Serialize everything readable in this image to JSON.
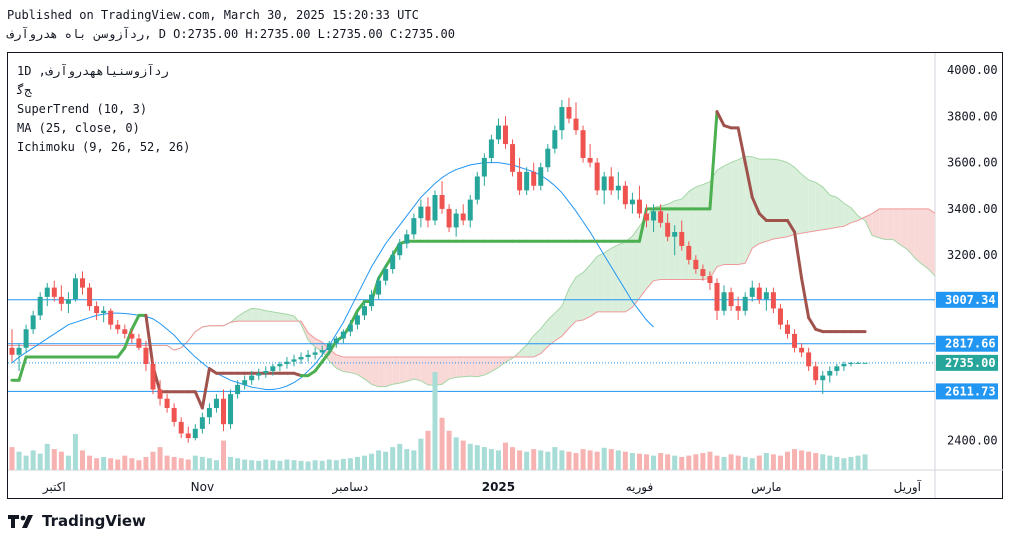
{
  "header": {
    "published": "Published on TradingView.com, March 30, 2025 15:20:33 UTC",
    "symbol_title": "ردآزوسن باه هدروآرف",
    "ohlc": ", D O:2735.00 H:2735.00 L:2735.00 C:2735.00"
  },
  "legend": {
    "symbol_line": "1D ,ردآزوسنیاههدروآرف",
    "symbol_sub": "ﺞﮔ",
    "indicators": [
      "SuperTrend (10, 3)",
      "MA (25, close, 0)",
      "Ichimoku (9, 26, 52, 26)"
    ]
  },
  "brand": {
    "name": "TradingView"
  },
  "colors": {
    "up": "#26a69a",
    "down": "#ef5350",
    "supertrend_up": "#4caf50",
    "supertrend_down": "#a0524c",
    "ma": "#2196f3",
    "cloud_bull": "#d9efdb",
    "cloud_bear": "#f9d9d7",
    "hline": "#2196f3",
    "label_blue": "#2196f3",
    "label_green": "#26a69a"
  },
  "chart_data": {
    "type": "candlestick",
    "y_axis": {
      "ylim": [
        2290,
        4060
      ],
      "ticks": [
        2400,
        3200,
        3400,
        3600,
        3800,
        4000
      ],
      "tick_labels": [
        "2400.00",
        "3200.00",
        "3400.00",
        "3600.00",
        "3800.00",
        "4000.00"
      ]
    },
    "x_axis": {
      "tick_labels": [
        {
          "label": "اکتبر",
          "idx": 6
        },
        {
          "label": "Nov",
          "idx": 27
        },
        {
          "label": "دسامبر",
          "idx": 48
        },
        {
          "label": "2025",
          "idx": 69
        },
        {
          "label": "فوریه",
          "idx": 89
        },
        {
          "label": "مارس",
          "idx": 107
        },
        {
          "label": "آوریل",
          "idx": 127
        }
      ]
    },
    "horizontal_lines": [
      {
        "value": 3007.34,
        "label": "3007.34",
        "style": "solid",
        "label_color": "#2196f3"
      },
      {
        "value": 2817.66,
        "label": "2817.66",
        "style": "solid",
        "label_color": "#2196f3"
      },
      {
        "value": 2735.0,
        "label": "2735.00",
        "style": "dotted",
        "label_color": "#26a69a"
      },
      {
        "value": 2611.73,
        "label": "2611.73",
        "style": "solid",
        "label_color": "#2196f3"
      }
    ],
    "candles": [
      [
        2800,
        2880,
        2740,
        2770
      ],
      [
        2770,
        2820,
        2700,
        2800
      ],
      [
        2800,
        2900,
        2780,
        2880
      ],
      [
        2880,
        2960,
        2860,
        2940
      ],
      [
        2940,
        3040,
        2920,
        3020
      ],
      [
        3020,
        3080,
        2980,
        3060
      ],
      [
        3060,
        3090,
        3000,
        3020
      ],
      [
        3020,
        3070,
        2960,
        2990
      ],
      [
        2990,
        3040,
        2950,
        3010
      ],
      [
        3010,
        3120,
        3000,
        3100
      ],
      [
        3100,
        3130,
        3030,
        3060
      ],
      [
        3060,
        3080,
        2960,
        2980
      ],
      [
        2980,
        3000,
        2920,
        2950
      ],
      [
        2950,
        2980,
        2910,
        2960
      ],
      [
        2960,
        2970,
        2880,
        2900
      ],
      [
        2900,
        2920,
        2860,
        2880
      ],
      [
        2880,
        2900,
        2840,
        2860
      ],
      [
        2860,
        2880,
        2820,
        2840
      ],
      [
        2840,
        2860,
        2790,
        2800
      ],
      [
        2800,
        2830,
        2700,
        2730
      ],
      [
        2730,
        2750,
        2600,
        2620
      ],
      [
        2620,
        2660,
        2550,
        2580
      ],
      [
        2580,
        2600,
        2520,
        2540
      ],
      [
        2540,
        2560,
        2460,
        2480
      ],
      [
        2480,
        2500,
        2410,
        2430
      ],
      [
        2430,
        2460,
        2390,
        2410
      ],
      [
        2410,
        2470,
        2400,
        2450
      ],
      [
        2450,
        2520,
        2430,
        2500
      ],
      [
        2500,
        2560,
        2470,
        2540
      ],
      [
        2540,
        2600,
        2520,
        2580
      ],
      [
        2580,
        2620,
        2440,
        2470
      ],
      [
        2470,
        2620,
        2450,
        2600
      ],
      [
        2600,
        2660,
        2580,
        2640
      ],
      [
        2640,
        2680,
        2620,
        2660
      ],
      [
        2660,
        2700,
        2640,
        2680
      ],
      [
        2680,
        2710,
        2660,
        2690
      ],
      [
        2690,
        2720,
        2670,
        2700
      ],
      [
        2700,
        2730,
        2680,
        2720
      ],
      [
        2720,
        2740,
        2700,
        2730
      ],
      [
        2730,
        2760,
        2710,
        2740
      ],
      [
        2740,
        2770,
        2720,
        2750
      ],
      [
        2750,
        2780,
        2730,
        2760
      ],
      [
        2760,
        2790,
        2740,
        2770
      ],
      [
        2770,
        2800,
        2750,
        2780
      ],
      [
        2780,
        2810,
        2760,
        2790
      ],
      [
        2790,
        2830,
        2770,
        2820
      ],
      [
        2820,
        2850,
        2800,
        2840
      ],
      [
        2840,
        2880,
        2820,
        2870
      ],
      [
        2870,
        2920,
        2850,
        2900
      ],
      [
        2900,
        2950,
        2880,
        2940
      ],
      [
        2940,
        3000,
        2920,
        2980
      ],
      [
        2980,
        3050,
        2960,
        3030
      ],
      [
        3030,
        3110,
        3010,
        3090
      ],
      [
        3090,
        3160,
        3070,
        3140
      ],
      [
        3140,
        3220,
        3120,
        3200
      ],
      [
        3200,
        3270,
        3180,
        3250
      ],
      [
        3250,
        3310,
        3230,
        3290
      ],
      [
        3290,
        3380,
        3270,
        3360
      ],
      [
        3360,
        3440,
        3320,
        3410
      ],
      [
        3410,
        3450,
        3320,
        3350
      ],
      [
        3350,
        3480,
        3330,
        3460
      ],
      [
        3460,
        3520,
        3380,
        3400
      ],
      [
        3400,
        3420,
        3300,
        3320
      ],
      [
        3320,
        3400,
        3280,
        3380
      ],
      [
        3380,
        3420,
        3330,
        3350
      ],
      [
        3350,
        3460,
        3320,
        3440
      ],
      [
        3440,
        3560,
        3420,
        3540
      ],
      [
        3540,
        3640,
        3500,
        3620
      ],
      [
        3620,
        3720,
        3600,
        3700
      ],
      [
        3700,
        3790,
        3680,
        3760
      ],
      [
        3760,
        3800,
        3660,
        3680
      ],
      [
        3680,
        3700,
        3540,
        3560
      ],
      [
        3560,
        3620,
        3460,
        3480
      ],
      [
        3480,
        3580,
        3460,
        3560
      ],
      [
        3560,
        3600,
        3480,
        3500
      ],
      [
        3500,
        3600,
        3480,
        3580
      ],
      [
        3580,
        3680,
        3560,
        3660
      ],
      [
        3660,
        3760,
        3640,
        3740
      ],
      [
        3740,
        3870,
        3700,
        3840
      ],
      [
        3840,
        3880,
        3770,
        3790
      ],
      [
        3790,
        3860,
        3720,
        3740
      ],
      [
        3740,
        3760,
        3600,
        3620
      ],
      [
        3620,
        3680,
        3580,
        3600
      ],
      [
        3600,
        3620,
        3460,
        3480
      ],
      [
        3480,
        3560,
        3420,
        3540
      ],
      [
        3540,
        3580,
        3460,
        3480
      ],
      [
        3480,
        3560,
        3440,
        3500
      ],
      [
        3500,
        3520,
        3400,
        3420
      ],
      [
        3420,
        3470,
        3380,
        3440
      ],
      [
        3440,
        3500,
        3360,
        3380
      ],
      [
        3380,
        3420,
        3320,
        3350
      ],
      [
        3350,
        3420,
        3300,
        3390
      ],
      [
        3390,
        3420,
        3320,
        3340
      ],
      [
        3340,
        3380,
        3260,
        3280
      ],
      [
        3280,
        3330,
        3200,
        3300
      ],
      [
        3300,
        3350,
        3220,
        3240
      ],
      [
        3240,
        3260,
        3160,
        3180
      ],
      [
        3180,
        3200,
        3120,
        3140
      ],
      [
        3140,
        3160,
        3090,
        3110
      ],
      [
        3110,
        3130,
        3050,
        3080
      ],
      [
        3080,
        3100,
        2920,
        2960
      ],
      [
        2960,
        3070,
        2940,
        3040
      ],
      [
        3040,
        3060,
        2960,
        2980
      ],
      [
        2980,
        3020,
        2920,
        2960
      ],
      [
        2960,
        3040,
        2940,
        3020
      ],
      [
        3020,
        3090,
        3000,
        3060
      ],
      [
        3060,
        3080,
        2990,
        3010
      ],
      [
        3010,
        3060,
        2960,
        3040
      ],
      [
        3040,
        3060,
        2950,
        2970
      ],
      [
        2970,
        2990,
        2880,
        2900
      ],
      [
        2900,
        2920,
        2840,
        2860
      ],
      [
        2860,
        2880,
        2780,
        2800
      ],
      [
        2800,
        2820,
        2760,
        2780
      ],
      [
        2780,
        2800,
        2700,
        2720
      ],
      [
        2720,
        2740,
        2640,
        2660
      ],
      [
        2660,
        2700,
        2600,
        2680
      ],
      [
        2680,
        2720,
        2650,
        2700
      ],
      [
        2700,
        2730,
        2680,
        2720
      ],
      [
        2720,
        2740,
        2700,
        2730
      ],
      [
        2730,
        2740,
        2720,
        2735
      ],
      [
        2735,
        2740,
        2730,
        2735
      ],
      [
        2735,
        2735,
        2735,
        2735
      ]
    ],
    "volume": [
      35,
      28,
      22,
      30,
      25,
      40,
      32,
      28,
      22,
      55,
      30,
      22,
      18,
      20,
      18,
      16,
      22,
      18,
      15,
      20,
      28,
      35,
      22,
      20,
      18,
      16,
      22,
      20,
      18,
      15,
      45,
      20,
      18,
      16,
      15,
      14,
      16,
      15,
      14,
      16,
      15,
      14,
      13,
      15,
      14,
      16,
      15,
      17,
      18,
      20,
      22,
      25,
      30,
      28,
      35,
      40,
      32,
      30,
      48,
      60,
      150,
      80,
      60,
      50,
      45,
      40,
      38,
      35,
      32,
      30,
      42,
      35,
      30,
      28,
      32,
      30,
      28,
      35,
      30,
      28,
      26,
      32,
      30,
      28,
      34,
      32,
      30,
      28,
      26,
      25,
      24,
      22,
      26,
      24,
      22,
      20,
      22,
      24,
      26,
      28,
      22,
      20,
      24,
      22,
      20,
      18,
      22,
      26,
      24,
      22,
      28,
      32,
      30,
      28,
      26,
      24,
      22,
      20,
      18,
      20,
      22,
      24
    ],
    "supertrend": [
      [
        2660,
        "up"
      ],
      [
        2660,
        "up"
      ],
      [
        2760,
        "up"
      ],
      [
        2760,
        "up"
      ],
      [
        2760,
        "up"
      ],
      [
        2760,
        "up"
      ],
      [
        2760,
        "up"
      ],
      [
        2760,
        "up"
      ],
      [
        2760,
        "up"
      ],
      [
        2760,
        "up"
      ],
      [
        2760,
        "up"
      ],
      [
        2760,
        "up"
      ],
      [
        2760,
        "up"
      ],
      [
        2760,
        "up"
      ],
      [
        2760,
        "up"
      ],
      [
        2760,
        "up"
      ],
      [
        2800,
        "up"
      ],
      [
        2880,
        "up"
      ],
      [
        2940,
        "up"
      ],
      [
        2940,
        "down"
      ],
      [
        2720,
        "down"
      ],
      [
        2610,
        "down"
      ],
      [
        2610,
        "down"
      ],
      [
        2610,
        "down"
      ],
      [
        2610,
        "down"
      ],
      [
        2610,
        "down"
      ],
      [
        2610,
        "down"
      ],
      [
        2540,
        "down"
      ],
      [
        2710,
        "down"
      ],
      [
        2690,
        "down"
      ],
      [
        2690,
        "down"
      ],
      [
        2690,
        "down"
      ],
      [
        2690,
        "down"
      ],
      [
        2690,
        "down"
      ],
      [
        2690,
        "down"
      ],
      [
        2690,
        "down"
      ],
      [
        2690,
        "down"
      ],
      [
        2690,
        "down"
      ],
      [
        2690,
        "down"
      ],
      [
        2690,
        "down"
      ],
      [
        2690,
        "down"
      ],
      [
        2680,
        "up"
      ],
      [
        2680,
        "up"
      ],
      [
        2700,
        "up"
      ],
      [
        2740,
        "up"
      ],
      [
        2780,
        "up"
      ],
      [
        2830,
        "up"
      ],
      [
        2850,
        "up"
      ],
      [
        2900,
        "up"
      ],
      [
        2960,
        "up"
      ],
      [
        3000,
        "up"
      ],
      [
        3000,
        "up"
      ],
      [
        3100,
        "up"
      ],
      [
        3150,
        "up"
      ],
      [
        3200,
        "up"
      ],
      [
        3250,
        "up"
      ],
      [
        3260,
        "up"
      ],
      [
        3260,
        "up"
      ],
      [
        3260,
        "up"
      ],
      [
        3260,
        "up"
      ],
      [
        3260,
        "up"
      ],
      [
        3260,
        "up"
      ],
      [
        3260,
        "up"
      ],
      [
        3260,
        "up"
      ],
      [
        3260,
        "up"
      ],
      [
        3260,
        "up"
      ],
      [
        3260,
        "up"
      ],
      [
        3260,
        "up"
      ],
      [
        3260,
        "up"
      ],
      [
        3260,
        "up"
      ],
      [
        3260,
        "up"
      ],
      [
        3260,
        "up"
      ],
      [
        3260,
        "up"
      ],
      [
        3260,
        "up"
      ],
      [
        3260,
        "up"
      ],
      [
        3260,
        "up"
      ],
      [
        3260,
        "up"
      ],
      [
        3260,
        "up"
      ],
      [
        3260,
        "up"
      ],
      [
        3260,
        "up"
      ],
      [
        3260,
        "up"
      ],
      [
        3260,
        "up"
      ],
      [
        3260,
        "up"
      ],
      [
        3260,
        "up"
      ],
      [
        3260,
        "up"
      ],
      [
        3260,
        "up"
      ],
      [
        3260,
        "up"
      ],
      [
        3260,
        "up"
      ],
      [
        3260,
        "up"
      ],
      [
        3260,
        "up"
      ],
      [
        3400,
        "up"
      ],
      [
        3400,
        "up"
      ],
      [
        3400,
        "up"
      ],
      [
        3400,
        "up"
      ],
      [
        3400,
        "up"
      ],
      [
        3400,
        "up"
      ],
      [
        3400,
        "up"
      ],
      [
        3400,
        "up"
      ],
      [
        3400,
        "up"
      ],
      [
        3400,
        "up"
      ],
      [
        3820,
        "down"
      ],
      [
        3760,
        "down"
      ],
      [
        3750,
        "down"
      ],
      [
        3750,
        "down"
      ],
      [
        3600,
        "down"
      ],
      [
        3450,
        "down"
      ],
      [
        3380,
        "down"
      ],
      [
        3350,
        "down"
      ],
      [
        3350,
        "down"
      ],
      [
        3350,
        "down"
      ],
      [
        3350,
        "down"
      ],
      [
        3300,
        "down"
      ],
      [
        3100,
        "down"
      ],
      [
        2930,
        "down"
      ],
      [
        2880,
        "down"
      ],
      [
        2870,
        "down"
      ],
      [
        2870,
        "down"
      ],
      [
        2870,
        "down"
      ],
      [
        2870,
        "down"
      ],
      [
        2870,
        "down"
      ],
      [
        2870,
        "down"
      ],
      [
        2870,
        "down"
      ]
    ],
    "ma": [
      2735,
      2760,
      2780,
      2800,
      2820,
      2840,
      2860,
      2880,
      2900,
      2910,
      2920,
      2930,
      2940,
      2945,
      2950,
      2950,
      2948,
      2945,
      2940,
      2935,
      2925,
      2905,
      2880,
      2855,
      2820,
      2790,
      2760,
      2735,
      2710,
      2690,
      2675,
      2660,
      2650,
      2640,
      2630,
      2625,
      2620,
      2620,
      2625,
      2635,
      2650,
      2670,
      2700,
      2730,
      2770,
      2810,
      2860,
      2910,
      2970,
      3030,
      3090,
      3150,
      3200,
      3250,
      3290,
      3330,
      3370,
      3410,
      3450,
      3480,
      3510,
      3535,
      3555,
      3570,
      3580,
      3590,
      3595,
      3600,
      3600,
      3600,
      3595,
      3590,
      3580,
      3570,
      3560,
      3545,
      3525,
      3500,
      3470,
      3430,
      3390,
      3345,
      3300,
      3250,
      3200,
      3150,
      3100,
      3050,
      3000,
      2960,
      2920,
      2890
    ]
  }
}
